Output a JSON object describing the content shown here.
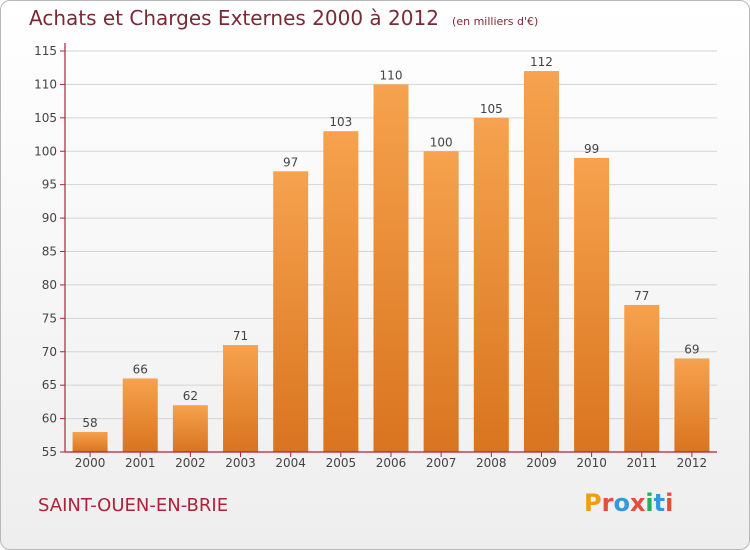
{
  "header": {
    "title": "Achats et Charges Externes 2000 à 2012",
    "unit": "(en milliers d'€)"
  },
  "footer": {
    "commune": "SAINT-OUEN-EN-BRIE",
    "logo_text": "Proxiti",
    "logo_colors": [
      "#f39c12",
      "#e74c3c",
      "#3498db",
      "#e74c3c",
      "#27ae60",
      "#3498db",
      "#e74c3c"
    ]
  },
  "chart_data": {
    "type": "bar",
    "title": "Achats et Charges Externes 2000 à 2012",
    "categories": [
      "2000",
      "2001",
      "2002",
      "2003",
      "2004",
      "2005",
      "2006",
      "2007",
      "2008",
      "2009",
      "2010",
      "2011",
      "2012"
    ],
    "values": [
      58,
      66,
      62,
      71,
      97,
      103,
      110,
      100,
      105,
      112,
      99,
      77,
      69
    ],
    "ylim": [
      55,
      115
    ],
    "yticks": [
      55,
      60,
      65,
      70,
      75,
      80,
      85,
      90,
      95,
      100,
      105,
      110,
      115
    ],
    "grid": true,
    "bar_color": "#f0903a",
    "axis_color": "#b3203a"
  }
}
